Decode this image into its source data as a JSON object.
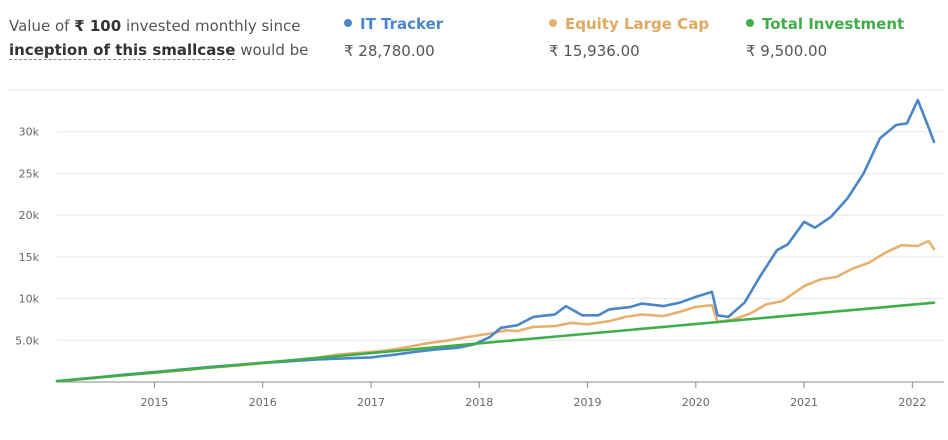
{
  "summary": {
    "prefix": "Value of",
    "amount": "₹ 100",
    "middle": "invested monthly since",
    "link": "inception of this smallcase",
    "suffix": "would be"
  },
  "colors": {
    "it_tracker": "#4a86c8",
    "equity_large_cap": "#e8b06e",
    "total_investment": "#3fae49",
    "grid": "#e6e6e6",
    "axis": "#888888"
  },
  "legend": [
    {
      "name": "IT Tracker",
      "value": "₹ 28,780.00"
    },
    {
      "name": "Equity Large Cap",
      "value": "₹ 15,936.00"
    },
    {
      "name": "Total Investment",
      "value": "₹ 9,500.00"
    }
  ],
  "chart_data": {
    "type": "line",
    "xlabel": "",
    "ylabel": "",
    "xlim": [
      2014.1,
      2022.2
    ],
    "ylim": [
      0,
      35000
    ],
    "y_ticks": [
      5000,
      10000,
      15000,
      20000,
      25000,
      30000
    ],
    "y_tick_labels": [
      "5.0k",
      "10k",
      "15k",
      "20k",
      "25k",
      "30k"
    ],
    "x_ticks": [
      2015,
      2016,
      2017,
      2018,
      2019,
      2020,
      2021,
      2022
    ],
    "x_tick_labels": [
      "2015",
      "2016",
      "2017",
      "2018",
      "2019",
      "2020",
      "2021",
      "2022"
    ],
    "grid": "horizontal",
    "series": [
      {
        "name": "IT Tracker",
        "points": [
          [
            2014.1,
            100
          ],
          [
            2014.3,
            350
          ],
          [
            2014.5,
            600
          ],
          [
            2014.7,
            850
          ],
          [
            2015.0,
            1200
          ],
          [
            2015.3,
            1550
          ],
          [
            2015.5,
            1800
          ],
          [
            2015.8,
            2100
          ],
          [
            2016.0,
            2300
          ],
          [
            2016.2,
            2450
          ],
          [
            2016.5,
            2700
          ],
          [
            2016.8,
            2850
          ],
          [
            2017.0,
            2950
          ],
          [
            2017.2,
            3250
          ],
          [
            2017.4,
            3600
          ],
          [
            2017.6,
            3900
          ],
          [
            2017.8,
            4100
          ],
          [
            2017.95,
            4500
          ],
          [
            2018.1,
            5400
          ],
          [
            2018.2,
            6500
          ],
          [
            2018.35,
            6800
          ],
          [
            2018.5,
            7800
          ],
          [
            2018.7,
            8100
          ],
          [
            2018.8,
            9100
          ],
          [
            2018.95,
            8000
          ],
          [
            2019.1,
            8000
          ],
          [
            2019.2,
            8700
          ],
          [
            2019.4,
            9000
          ],
          [
            2019.5,
            9400
          ],
          [
            2019.7,
            9100
          ],
          [
            2019.85,
            9500
          ],
          [
            2020.0,
            10200
          ],
          [
            2020.15,
            10800
          ],
          [
            2020.2,
            8000
          ],
          [
            2020.3,
            7800
          ],
          [
            2020.45,
            9500
          ],
          [
            2020.6,
            12800
          ],
          [
            2020.75,
            15800
          ],
          [
            2020.85,
            16500
          ],
          [
            2021.0,
            19200
          ],
          [
            2021.1,
            18500
          ],
          [
            2021.25,
            19800
          ],
          [
            2021.4,
            22000
          ],
          [
            2021.55,
            25000
          ],
          [
            2021.7,
            29200
          ],
          [
            2021.85,
            30800
          ],
          [
            2021.95,
            31000
          ],
          [
            2022.05,
            33800
          ],
          [
            2022.15,
            30500
          ],
          [
            2022.2,
            28780
          ]
        ]
      },
      {
        "name": "Equity Large Cap",
        "points": [
          [
            2014.1,
            100
          ],
          [
            2014.3,
            300
          ],
          [
            2014.5,
            550
          ],
          [
            2014.7,
            800
          ],
          [
            2015.0,
            1100
          ],
          [
            2015.3,
            1450
          ],
          [
            2015.5,
            1700
          ],
          [
            2015.8,
            2000
          ],
          [
            2016.0,
            2250
          ],
          [
            2016.3,
            2550
          ],
          [
            2016.5,
            2900
          ],
          [
            2016.7,
            3300
          ],
          [
            2016.9,
            3500
          ],
          [
            2017.1,
            3700
          ],
          [
            2017.3,
            4100
          ],
          [
            2017.5,
            4600
          ],
          [
            2017.7,
            4950
          ],
          [
            2017.9,
            5400
          ],
          [
            2018.1,
            5800
          ],
          [
            2018.25,
            6200
          ],
          [
            2018.35,
            6100
          ],
          [
            2018.5,
            6600
          ],
          [
            2018.7,
            6700
          ],
          [
            2018.85,
            7100
          ],
          [
            2019.0,
            6900
          ],
          [
            2019.2,
            7300
          ],
          [
            2019.35,
            7800
          ],
          [
            2019.5,
            8100
          ],
          [
            2019.7,
            7900
          ],
          [
            2019.85,
            8400
          ],
          [
            2020.0,
            9000
          ],
          [
            2020.15,
            9200
          ],
          [
            2020.2,
            7200
          ],
          [
            2020.35,
            7500
          ],
          [
            2020.5,
            8200
          ],
          [
            2020.65,
            9300
          ],
          [
            2020.8,
            9700
          ],
          [
            2021.0,
            11500
          ],
          [
            2021.15,
            12300
          ],
          [
            2021.3,
            12600
          ],
          [
            2021.45,
            13600
          ],
          [
            2021.6,
            14300
          ],
          [
            2021.75,
            15500
          ],
          [
            2021.9,
            16400
          ],
          [
            2022.05,
            16300
          ],
          [
            2022.15,
            16900
          ],
          [
            2022.2,
            15936
          ]
        ]
      },
      {
        "name": "Total Investment",
        "points": [
          [
            2014.1,
            100
          ],
          [
            2022.2,
            9500
          ]
        ]
      }
    ]
  }
}
